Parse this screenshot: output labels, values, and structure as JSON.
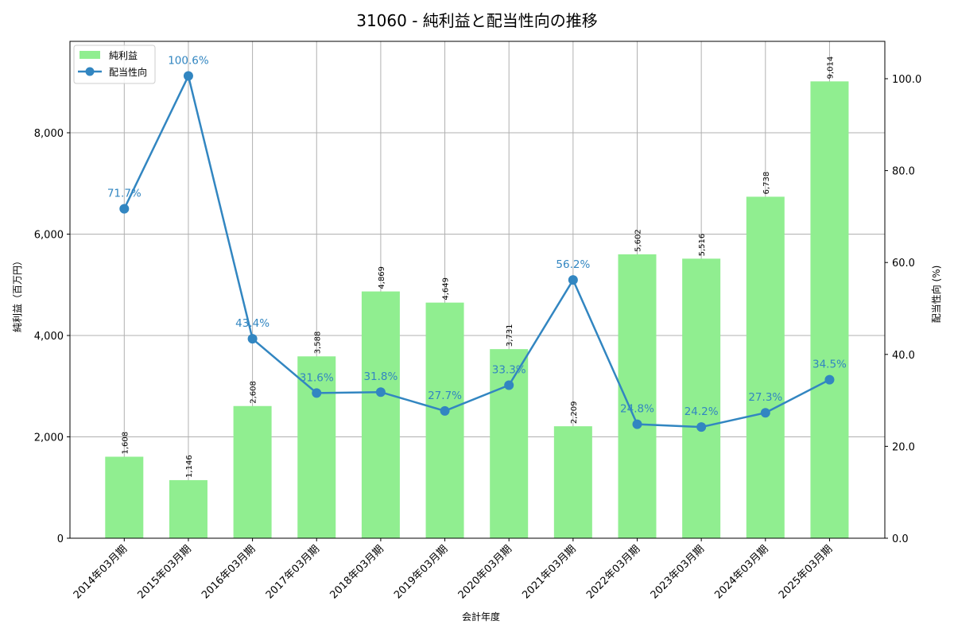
{
  "chart_data": {
    "type": "bar+line",
    "title": "31060 - 純利益と配当性向の推移",
    "xlabel": "会計年度",
    "ylabel_left": "純利益（百万円）",
    "ylabel_right": "配当性向 (%)",
    "categories": [
      "2014年03月期",
      "2015年03月期",
      "2016年03月期",
      "2017年03月期",
      "2018年03月期",
      "2019年03月期",
      "2020年03月期",
      "2021年03月期",
      "2022年03月期",
      "2023年03月期",
      "2024年03月期",
      "2025年03月期"
    ],
    "series": [
      {
        "name": "純利益",
        "type": "bar",
        "axis": "left",
        "color": "#90ee90",
        "values": [
          1608,
          1146,
          2608,
          3588,
          4869,
          4649,
          3731,
          2209,
          5602,
          5516,
          6738,
          9014
        ],
        "labels": [
          "1,608",
          "1,146",
          "2,608",
          "3,588",
          "4,869",
          "4,649",
          "3,731",
          "2,209",
          "5,602",
          "5,516",
          "6,738",
          "9,014"
        ]
      },
      {
        "name": "配当性向",
        "type": "line",
        "axis": "right",
        "color": "#3286c1",
        "values": [
          71.7,
          100.6,
          43.4,
          31.6,
          31.8,
          27.7,
          33.3,
          56.2,
          24.8,
          24.2,
          27.3,
          34.5
        ],
        "labels": [
          "71.7%",
          "100.6%",
          "43.4%",
          "31.6%",
          "31.8%",
          "27.7%",
          "33.3%",
          "56.2%",
          "24.8%",
          "24.2%",
          "27.3%",
          "34.5%"
        ]
      }
    ],
    "ylim_left": [
      0,
      9800
    ],
    "yticks_left": [
      0,
      2000,
      4000,
      6000,
      8000
    ],
    "yticks_left_labels": [
      "0",
      "2,000",
      "4,000",
      "6,000",
      "8,000"
    ],
    "ylim_right": [
      0,
      108
    ],
    "yticks_right": [
      0,
      20,
      40,
      60,
      80,
      100
    ],
    "yticks_right_labels": [
      "0.0",
      "20.0",
      "40.0",
      "60.0",
      "80.0",
      "100.0"
    ],
    "grid": true,
    "legend_position": "upper left"
  }
}
